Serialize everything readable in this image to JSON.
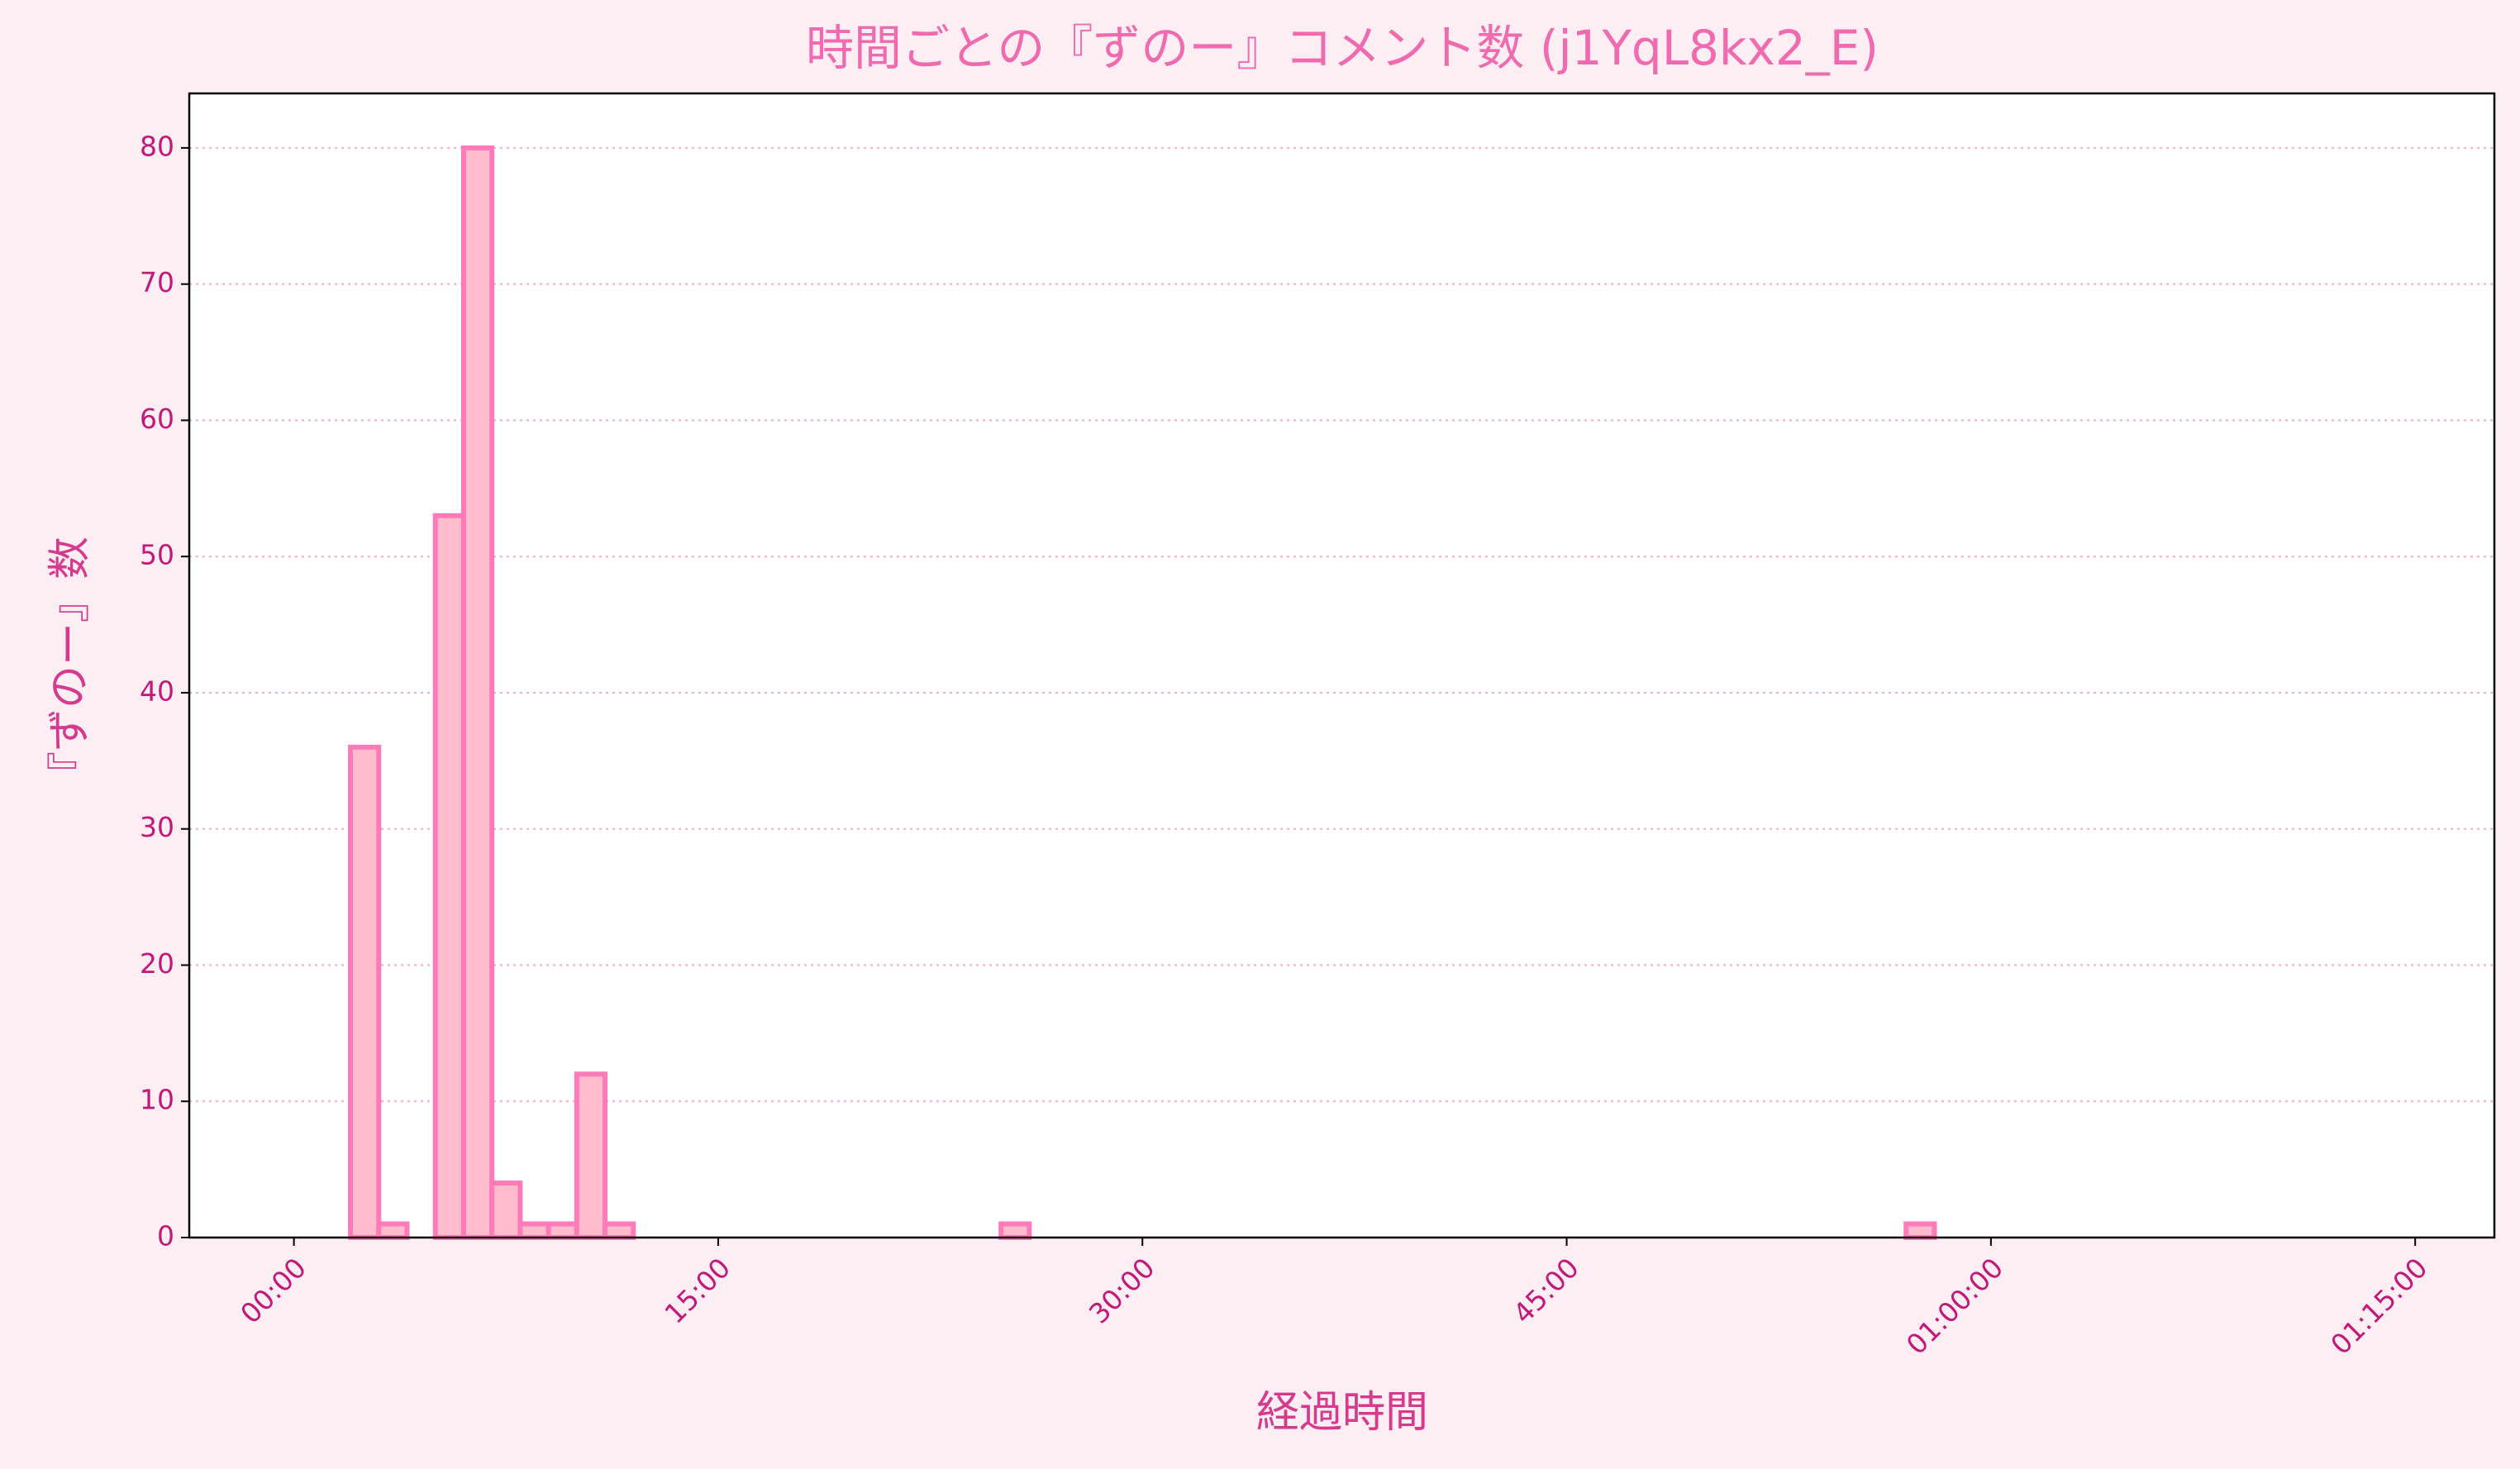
{
  "chart_data": {
    "type": "histogram",
    "title": "時間ごとの『ずのー』コメント数 (j1YqL8kx2_E)",
    "x_label": "経過時間",
    "y_label": "『ずのー』数",
    "bins": [
      0,
      1,
      2,
      3,
      4,
      5,
      6,
      7,
      8,
      9,
      10,
      11,
      12,
      13,
      14,
      15,
      16,
      17,
      18,
      19,
      20,
      21,
      22,
      23,
      24,
      25,
      26,
      27,
      28,
      29,
      30,
      31,
      32,
      33,
      34,
      35,
      36,
      37,
      38,
      39,
      40,
      41,
      42,
      43,
      44,
      45,
      46,
      47,
      48,
      49,
      50,
      51,
      52,
      53,
      54,
      55,
      56,
      57,
      58,
      59,
      60,
      61,
      62,
      63,
      64,
      65,
      66,
      67,
      68,
      69,
      70,
      71,
      72,
      73,
      74
    ],
    "values": [
      0,
      0,
      36,
      1,
      0,
      53,
      80,
      4,
      1,
      1,
      12,
      1,
      0,
      0,
      0,
      0,
      0,
      0,
      0,
      0,
      0,
      0,
      0,
      0,
      0,
      1,
      0,
      0,
      0,
      0,
      0,
      0,
      0,
      0,
      0,
      0,
      0,
      0,
      0,
      0,
      0,
      0,
      0,
      0,
      0,
      0,
      0,
      0,
      0,
      0,
      0,
      0,
      0,
      0,
      0,
      0,
      0,
      1,
      0,
      0,
      0,
      0,
      0,
      0,
      0,
      0,
      0,
      0,
      0,
      0,
      0,
      0,
      0,
      0
    ],
    "color": "#ffbccd",
    "edge_color": "#ff7ab8",
    "xlim": [
      -3.7,
      77.8
    ],
    "ylim": [
      0,
      84
    ],
    "xticks": [
      {
        "value": 0,
        "label": "00:00"
      },
      {
        "value": 15,
        "label": "15:00"
      },
      {
        "value": 30,
        "label": "30:00"
      },
      {
        "value": 45,
        "label": "45:00"
      },
      {
        "value": 60,
        "label": "01:00:00"
      },
      {
        "value": 75,
        "label": "01:15:00"
      }
    ],
    "yticks": [
      0,
      10,
      20,
      30,
      40,
      50,
      60,
      70,
      80
    ],
    "grid": true
  }
}
